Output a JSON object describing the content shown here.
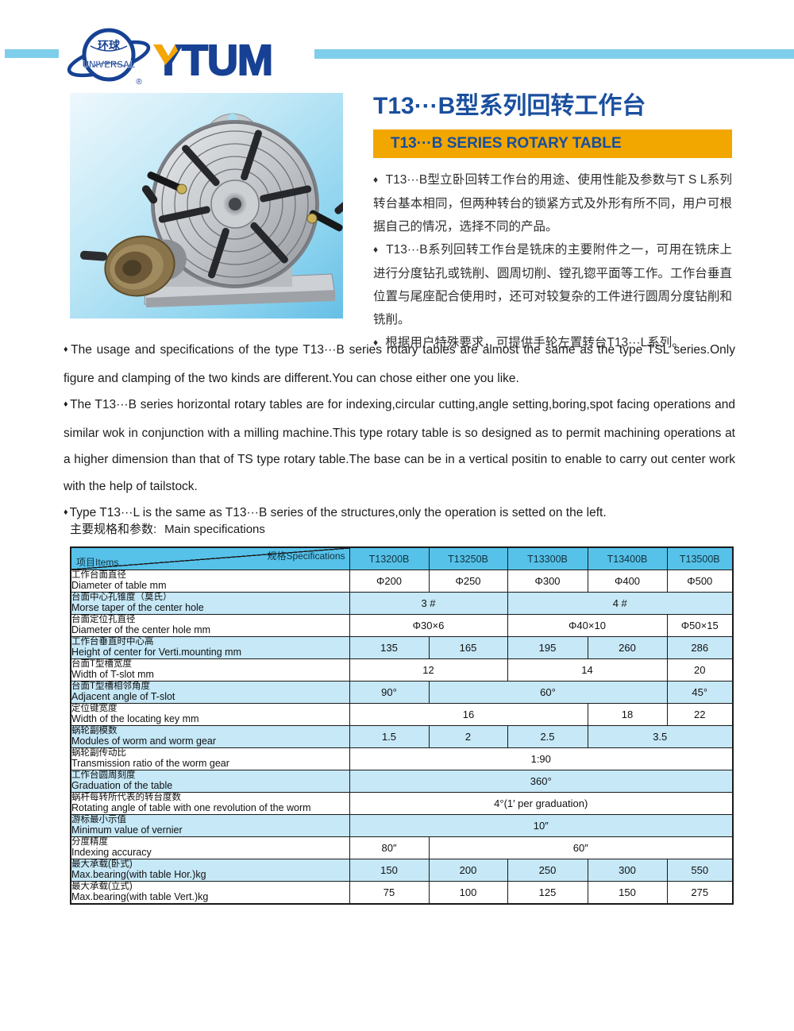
{
  "logo": {
    "globe_zh": "环球",
    "globe_en": "UNIVERSAL",
    "registered": "®",
    "wordmark": "YTUM"
  },
  "hero": {
    "title": "T13···B型系列回转工作台",
    "banner": "T13···B SERIES ROTARY TABLE",
    "bullet": "♦",
    "paragraphs_zh": [
      "T13···B型立卧回转工作台的用途、使用性能及参数与T S L系列转台基本相同，但两种转台的锁紧方式及外形有所不同，用户可根据自己的情况，选择不同的产品。",
      "T13···B系列回转工作台是铣床的主要附件之一，可用在铣床上进行分度钻孔或铣削、圆周切削、镗孔锪平面等工作。工作台垂直位置与尾座配合使用时，还可对较复杂的工件进行圆周分度钻削和铣削。",
      "根据用户特殊要求，可提供手轮左置转台T13···L系列。"
    ]
  },
  "intro": {
    "bullet": "♦",
    "paragraphs": [
      "The usage and specifications of the type T13···B series rotary tables are almost the same as the type TSL series.Only figure and clamping of the two kinds are different.You can chose either one you like.",
      "The T13···B series horizontal rotary tables are for indexing,circular cutting,angle setting,boring,spot facing operations and similar wok in conjunction with a milling machine.This type rotary table is so designed as to permit machining operations at a higher dimension than that of TS type rotary table.The base can be in a vertical positin to enable to carry out center work with the help of tailstock.",
      "Type T13···L is the same as T13···B series of the structures,only the operation is setted on the left."
    ]
  },
  "specs": {
    "heading_zh": "主要规格和参数:",
    "heading_en": "Main specifications",
    "corner_top": "规格Specifications",
    "corner_bottom": "项目Items",
    "models": [
      "T13200B",
      "T13250B",
      "T13300B",
      "T13400B",
      "T13500B"
    ],
    "rows": [
      {
        "zh": "工作台面直径",
        "en": "Diameter of table mm",
        "cells": [
          {
            "v": "Φ200",
            "span": 1
          },
          {
            "v": "Φ250",
            "span": 1
          },
          {
            "v": "Φ300",
            "span": 1
          },
          {
            "v": "Φ400",
            "span": 1
          },
          {
            "v": "Φ500",
            "span": 1
          }
        ]
      },
      {
        "zh": "台面中心孔锥度（莫氏）",
        "en": "Morse taper of the center hole",
        "cells": [
          {
            "v": "3 #",
            "span": 2
          },
          {
            "v": "4 #",
            "span": 3
          }
        ]
      },
      {
        "zh": "台面定位孔直径",
        "en": "Diameter of the center hole mm",
        "cells": [
          {
            "v": "Φ30×6",
            "span": 2
          },
          {
            "v": "Φ40×10",
            "span": 2
          },
          {
            "v": "Φ50×15",
            "span": 1
          }
        ]
      },
      {
        "zh": "工作台垂直时中心高",
        "en": "Height of center for Verti.mounting mm",
        "cells": [
          {
            "v": "135",
            "span": 1
          },
          {
            "v": "165",
            "span": 1
          },
          {
            "v": "195",
            "span": 1
          },
          {
            "v": "260",
            "span": 1
          },
          {
            "v": "286",
            "span": 1
          }
        ]
      },
      {
        "zh": "台面T型槽宽度",
        "en": "Width of T-slot mm",
        "cells": [
          {
            "v": "12",
            "span": 2
          },
          {
            "v": "14",
            "span": 2
          },
          {
            "v": "20",
            "span": 1
          }
        ]
      },
      {
        "zh": "台面T型槽相邻角度",
        "en": "Adjacent angle of T-slot",
        "cells": [
          {
            "v": "90°",
            "span": 1
          },
          {
            "v": "60°",
            "span": 3
          },
          {
            "v": "45°",
            "span": 1
          }
        ]
      },
      {
        "zh": "定位键宽度",
        "en": "Width of the locating key mm",
        "cells": [
          {
            "v": "16",
            "span": 3
          },
          {
            "v": "18",
            "span": 1
          },
          {
            "v": "22",
            "span": 1
          }
        ]
      },
      {
        "zh": "蜗轮副模数",
        "en": "Modules of worm and worm gear",
        "cells": [
          {
            "v": "1.5",
            "span": 1
          },
          {
            "v": "2",
            "span": 1
          },
          {
            "v": "2.5",
            "span": 1
          },
          {
            "v": "3.5",
            "span": 2
          }
        ]
      },
      {
        "zh": "蜗轮副传动比",
        "en": "Transmission ratio of the worm gear",
        "cells": [
          {
            "v": "1:90",
            "span": 5
          }
        ]
      },
      {
        "zh": "工作台圆周刻度",
        "en": "Graduation of the table",
        "cells": [
          {
            "v": "360°",
            "span": 5
          }
        ]
      },
      {
        "zh": "蜗杆每转所代表的转台度数",
        "en": "Rotating angle of table with one revolution of the worm",
        "cells": [
          {
            "v": "4°(1′ per graduation)",
            "span": 5
          }
        ]
      },
      {
        "zh": "游标最小示值",
        "en": "Minimum value of vernier",
        "cells": [
          {
            "v": "10″",
            "span": 5
          }
        ]
      },
      {
        "zh": "分度精度",
        "en": "Indexing accuracy",
        "cells": [
          {
            "v": "80″",
            "span": 1
          },
          {
            "v": "60″",
            "span": 4
          }
        ]
      },
      {
        "zh": "最大承载(卧式)",
        "en": "Max.bearing(with table Hor.)kg",
        "cells": [
          {
            "v": "150",
            "span": 1
          },
          {
            "v": "200",
            "span": 1
          },
          {
            "v": "250",
            "span": 1
          },
          {
            "v": "300",
            "span": 1
          },
          {
            "v": "550",
            "span": 1
          }
        ]
      },
      {
        "zh": "最大承载(立式)",
        "en": "Max.bearing(with table Vert.)kg",
        "cells": [
          {
            "v": "75",
            "span": 1
          },
          {
            "v": "100",
            "span": 1
          },
          {
            "v": "125",
            "span": 1
          },
          {
            "v": "150",
            "span": 1
          },
          {
            "v": "275",
            "span": 1
          }
        ]
      }
    ]
  },
  "colors": {
    "brand_blue": "#164194",
    "title_blue": "#1A4F9E",
    "banner_orange": "#F2A600",
    "bar_blue": "#7FCEEC",
    "table_header_blue": "#56C2EA",
    "table_alt_row_blue": "#C6E8F7",
    "border_dark": "#1A1A1A"
  }
}
